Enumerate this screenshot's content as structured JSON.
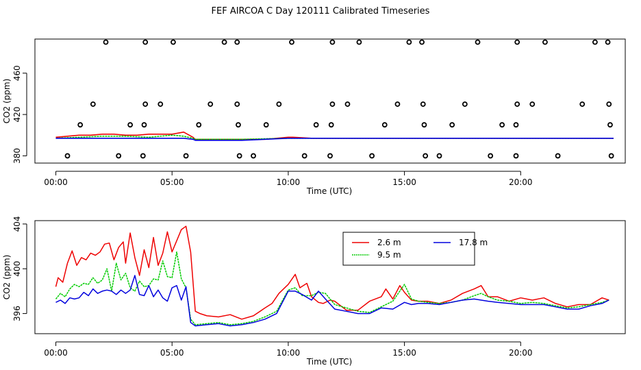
{
  "title": "FEF AIRCOA C  Day 120111  Calibrated Timeseries",
  "colors": {
    "s26": "#ee0000",
    "s95": "#00cc00",
    "s178": "#0000dd",
    "frame": "#000000"
  },
  "chart_data": [
    {
      "type": "scatter+line",
      "panel": "top",
      "xlabel": "Time (UTC)",
      "ylabel": "CO2 (ppm)",
      "xlim": [
        -0.9,
        24.5
      ],
      "ylim": [
        373,
        493
      ],
      "xticks": [
        0,
        5,
        10,
        15,
        20
      ],
      "xtick_labels": [
        "00:00",
        "05:00",
        "10:00",
        "15:00",
        "20:00"
      ],
      "yticks": [
        380,
        420,
        460
      ],
      "ytick_labels": [
        "380",
        "420",
        "460"
      ],
      "markers": {
        "name": "circles",
        "points": [
          [
            0.5,
            380
          ],
          [
            2.15,
            490
          ],
          [
            3.85,
            490
          ],
          [
            5.05,
            490
          ],
          [
            7.25,
            490
          ],
          [
            7.8,
            490
          ],
          [
            10.15,
            490
          ],
          [
            11.9,
            490
          ],
          [
            13.05,
            490
          ],
          [
            15.2,
            490
          ],
          [
            15.75,
            490
          ],
          [
            18.15,
            490
          ],
          [
            19.85,
            490
          ],
          [
            21.05,
            490
          ],
          [
            23.2,
            490
          ],
          [
            23.75,
            490
          ],
          [
            1.6,
            430
          ],
          [
            3.85,
            430
          ],
          [
            4.5,
            430
          ],
          [
            6.65,
            430
          ],
          [
            7.8,
            430
          ],
          [
            9.6,
            430
          ],
          [
            11.9,
            430
          ],
          [
            12.55,
            430
          ],
          [
            14.7,
            430
          ],
          [
            15.8,
            430
          ],
          [
            17.6,
            430
          ],
          [
            19.85,
            430
          ],
          [
            20.5,
            430
          ],
          [
            22.65,
            430
          ],
          [
            23.8,
            430
          ],
          [
            1.05,
            410
          ],
          [
            3.2,
            410
          ],
          [
            3.8,
            410
          ],
          [
            6.15,
            410
          ],
          [
            7.85,
            410
          ],
          [
            9.05,
            410
          ],
          [
            11.2,
            410
          ],
          [
            11.85,
            410
          ],
          [
            14.15,
            410
          ],
          [
            15.85,
            410
          ],
          [
            17.05,
            410
          ],
          [
            19.2,
            410
          ],
          [
            19.8,
            410
          ],
          [
            23.85,
            410
          ],
          [
            2.7,
            380
          ],
          [
            3.75,
            380
          ],
          [
            5.6,
            380
          ],
          [
            7.9,
            380
          ],
          [
            8.5,
            380
          ],
          [
            10.7,
            380
          ],
          [
            11.8,
            380
          ],
          [
            13.6,
            380
          ],
          [
            15.9,
            380
          ],
          [
            16.5,
            380
          ],
          [
            18.7,
            380
          ],
          [
            19.8,
            380
          ],
          [
            21.6,
            380
          ],
          [
            23.9,
            380
          ]
        ]
      },
      "series": [
        {
          "name": "2.6 m",
          "x": [
            0,
            0.5,
            1,
            1.5,
            2,
            2.5,
            3,
            3.5,
            4,
            4.5,
            5,
            5.5,
            5.9,
            6,
            7,
            8,
            9,
            10,
            10.2,
            11,
            12,
            13,
            14,
            15,
            16,
            17,
            18,
            19,
            20,
            21,
            22,
            23,
            24
          ],
          "values": [
            398,
            399,
            400,
            400,
            401,
            401,
            400,
            400,
            401,
            401,
            401,
            403,
            398,
            396,
            396,
            396,
            396,
            398,
            398,
            397,
            397,
            397,
            397,
            397,
            397,
            397,
            397,
            397,
            397,
            397,
            397,
            397,
            397
          ]
        },
        {
          "name": "9.5 m",
          "x": [
            0,
            1,
            2,
            3,
            4,
            5,
            5.5,
            5.9,
            6,
            8,
            10,
            12,
            14,
            16,
            18,
            20,
            22,
            24
          ],
          "values": [
            397,
            398,
            399,
            399,
            398,
            400,
            399,
            397,
            396,
            396,
            397,
            397,
            397,
            397,
            397,
            397,
            397,
            397
          ]
        },
        {
          "name": "17.8 m",
          "x": [
            0,
            1,
            2,
            3,
            4,
            5,
            5.5,
            5.9,
            6,
            8,
            10,
            12,
            14,
            16,
            18,
            20,
            22,
            24
          ],
          "values": [
            397,
            397,
            397,
            397,
            397,
            397,
            397,
            396,
            395,
            395,
            397,
            397,
            397,
            397,
            397,
            397,
            397,
            397
          ]
        }
      ]
    },
    {
      "type": "line",
      "panel": "bottom",
      "xlabel": "Time (UTC)",
      "ylabel": "CO2 (ppm)",
      "xlim": [
        -0.9,
        24.5
      ],
      "ylim": [
        394.2,
        404.3
      ],
      "xticks": [
        0,
        5,
        10,
        15,
        20
      ],
      "xtick_labels": [
        "00:00",
        "05:00",
        "10:00",
        "15:00",
        "20:00"
      ],
      "yticks": [
        396,
        400,
        404
      ],
      "ytick_labels": [
        "396",
        "400",
        "404"
      ],
      "legend": {
        "position": "top-center",
        "entries": [
          "2.6 m",
          "17.8 m",
          "9.5 m"
        ]
      },
      "series": [
        {
          "name": "2.6 m",
          "x": [
            0,
            0.1,
            0.3,
            0.5,
            0.7,
            0.9,
            1.1,
            1.3,
            1.5,
            1.7,
            1.9,
            2.1,
            2.3,
            2.5,
            2.7,
            2.9,
            3.0,
            3.2,
            3.4,
            3.6,
            3.8,
            4.0,
            4.2,
            4.4,
            4.6,
            4.8,
            5.0,
            5.2,
            5.4,
            5.6,
            5.8,
            6.0,
            6.2,
            6.5,
            7,
            7.5,
            8,
            8.5,
            9,
            9.3,
            9.6,
            10,
            10.3,
            10.5,
            10.8,
            11,
            11.3,
            11.5,
            11.8,
            12,
            12.5,
            13,
            13.5,
            14,
            14.2,
            14.5,
            14.8,
            15,
            15.3,
            15.6,
            16,
            16.5,
            17,
            17.5,
            18,
            18.3,
            18.6,
            19,
            19.5,
            20,
            20.5,
            21,
            21.5,
            22,
            22.5,
            23,
            23.5,
            23.8
          ],
          "values": [
            398.4,
            399.2,
            398.8,
            400.5,
            401.6,
            400.3,
            401,
            400.8,
            401.4,
            401.2,
            401.5,
            402.2,
            402.3,
            400.8,
            401.9,
            402.4,
            400.5,
            403.2,
            401,
            399.4,
            401.7,
            400.1,
            402.8,
            400.3,
            401.4,
            403.3,
            401.5,
            402.5,
            403.5,
            403.8,
            401.5,
            396.2,
            396,
            395.8,
            395.7,
            395.9,
            395.5,
            395.8,
            396.5,
            396.9,
            397.8,
            398.6,
            399.5,
            398.3,
            398.7,
            397.5,
            397,
            396.9,
            397.2,
            397.1,
            396.3,
            396.3,
            397.1,
            397.5,
            398.2,
            397.3,
            398.5,
            397.9,
            397.2,
            397.1,
            397.1,
            396.9,
            397.2,
            397.8,
            398.2,
            398.5,
            397.5,
            397.5,
            397.1,
            397.4,
            397.2,
            397.4,
            396.9,
            396.6,
            396.8,
            396.8,
            397.4,
            397.2
          ]
        },
        {
          "name": "9.5 m",
          "x": [
            0,
            0.2,
            0.4,
            0.6,
            0.8,
            1,
            1.2,
            1.4,
            1.6,
            1.8,
            2,
            2.2,
            2.4,
            2.6,
            2.8,
            3,
            3.2,
            3.4,
            3.6,
            3.8,
            4,
            4.2,
            4.4,
            4.6,
            4.8,
            5,
            5.2,
            5.4,
            5.6,
            5.8,
            6,
            6.5,
            7,
            7.5,
            8,
            8.5,
            9,
            9.5,
            10,
            10.3,
            10.6,
            11,
            11.3,
            11.6,
            12,
            12.5,
            13,
            13.5,
            14,
            14.5,
            15,
            15.3,
            15.6,
            16,
            16.5,
            17,
            17.5,
            18,
            18.3,
            18.6,
            19,
            19.5,
            20,
            20.5,
            21,
            21.5,
            22,
            22.5,
            23,
            23.5,
            23.8
          ],
          "values": [
            397.3,
            397.8,
            397.5,
            398.2,
            398.6,
            398.4,
            398.7,
            398.6,
            399.2,
            398.7,
            399,
            400,
            398,
            400.5,
            399,
            399.6,
            398.3,
            398,
            398.9,
            398.4,
            398.5,
            399.1,
            399,
            400.7,
            399.3,
            399.2,
            401.5,
            399.1,
            398.3,
            395.5,
            395,
            395.1,
            395.2,
            395,
            395.1,
            395.3,
            395.7,
            396.2,
            398.1,
            398.3,
            397.6,
            397.6,
            397.9,
            397.8,
            396.8,
            396.5,
            396.2,
            396.1,
            396.6,
            397.1,
            398.6,
            397.3,
            397.1,
            397,
            396.9,
            397,
            397.2,
            397.6,
            397.8,
            397.5,
            397.2,
            397.1,
            396.9,
            397,
            396.9,
            396.7,
            396.5,
            396.6,
            396.8,
            397,
            397.2
          ]
        },
        {
          "name": "17.8 m",
          "x": [
            0,
            0.2,
            0.4,
            0.6,
            0.8,
            1,
            1.2,
            1.4,
            1.6,
            1.8,
            2,
            2.2,
            2.4,
            2.6,
            2.8,
            3,
            3.2,
            3.4,
            3.6,
            3.8,
            4,
            4.2,
            4.4,
            4.6,
            4.8,
            5,
            5.2,
            5.4,
            5.6,
            5.8,
            6,
            6.5,
            7,
            7.5,
            8,
            8.5,
            9,
            9.5,
            10,
            10.3,
            10.6,
            11,
            11.3,
            11.6,
            12,
            12.5,
            13,
            13.5,
            14,
            14.5,
            15,
            15.3,
            15.6,
            16,
            16.5,
            17,
            17.5,
            18,
            18.3,
            18.6,
            19,
            19.5,
            20,
            20.5,
            21,
            21.5,
            22,
            22.5,
            23,
            23.5,
            23.8
          ],
          "values": [
            397,
            397.2,
            396.9,
            397.4,
            397.3,
            397.4,
            397.9,
            397.6,
            398.2,
            397.8,
            398,
            398.1,
            398,
            397.7,
            398.1,
            397.8,
            398.1,
            399.4,
            397.7,
            397.6,
            398.5,
            397.5,
            398.1,
            397.4,
            397.1,
            398.3,
            398.5,
            397.2,
            398.4,
            395.2,
            394.9,
            395,
            395.1,
            394.9,
            395,
            395.2,
            395.5,
            396,
            398,
            398,
            397.7,
            397.2,
            398,
            397.3,
            396.4,
            396.2,
            396,
            396,
            396.5,
            396.4,
            397,
            396.8,
            396.9,
            396.9,
            396.8,
            397,
            397.2,
            397.3,
            397.2,
            397.1,
            397,
            396.9,
            396.8,
            396.8,
            396.8,
            396.6,
            396.4,
            396.4,
            396.7,
            396.9,
            397.2
          ]
        }
      ]
    }
  ]
}
